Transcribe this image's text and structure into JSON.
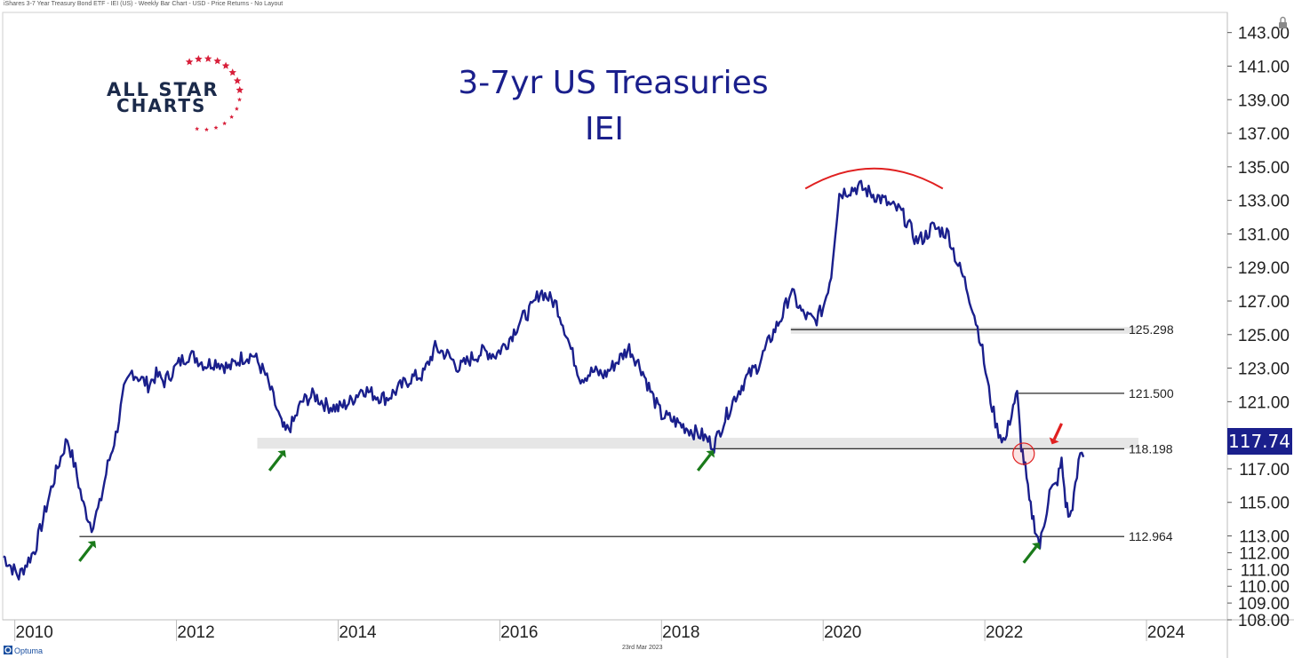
{
  "header_caption": "iShares 3-7 Year Treasury Bond ETF - IEI (US) - Weekly Bar Chart - USD - Price Returns - No Layout",
  "footer": {
    "brand": "Optuma",
    "date": "23rd Mar 2023"
  },
  "logo": {
    "line1": "ALL STAR",
    "line2": "CHARTS"
  },
  "colors": {
    "series": "#1a1f8c",
    "title": "#1a1f8c",
    "arc": "#e02020",
    "arrow_up": "#1a7a1a",
    "arrow_down": "#e02020",
    "price_box": "#1a1f8c",
    "band": "#e6e6e6",
    "star": "#d81f3a"
  },
  "chart_data": {
    "type": "line",
    "title": "3-7yr US Treasuries",
    "subtitle": "IEI",
    "xlim": [
      2009.85,
      2025.0
    ],
    "ylim": [
      108.0,
      144.2
    ],
    "y_ticks": [
      {
        "v": 143,
        "label": "143.00"
      },
      {
        "v": 141,
        "label": "141.00"
      },
      {
        "v": 139,
        "label": "139.00"
      },
      {
        "v": 137,
        "label": "137.00"
      },
      {
        "v": 135,
        "label": "135.00"
      },
      {
        "v": 133,
        "label": "133.00"
      },
      {
        "v": 131,
        "label": "131.00"
      },
      {
        "v": 129,
        "label": "129.00"
      },
      {
        "v": 127,
        "label": "127.00"
      },
      {
        "v": 125,
        "label": "125.00"
      },
      {
        "v": 123,
        "label": "123.00"
      },
      {
        "v": 121,
        "label": "121.00"
      },
      {
        "v": 119,
        "label": "119.00"
      },
      {
        "v": 117,
        "label": "117.00"
      },
      {
        "v": 115,
        "label": "115.00"
      },
      {
        "v": 113,
        "label": "113.00"
      },
      {
        "v": 112,
        "label": "112.00"
      },
      {
        "v": 111,
        "label": "111.00"
      },
      {
        "v": 110,
        "label": "110.00"
      },
      {
        "v": 109,
        "label": "109.00"
      },
      {
        "v": 108,
        "label": "108.00"
      }
    ],
    "x_ticks": [
      {
        "v": 2010,
        "label": "2010"
      },
      {
        "v": 2012,
        "label": "2012"
      },
      {
        "v": 2014,
        "label": "2014"
      },
      {
        "v": 2016,
        "label": "2016"
      },
      {
        "v": 2018,
        "label": "2018"
      },
      {
        "v": 2020,
        "label": "2020"
      },
      {
        "v": 2022,
        "label": "2022"
      },
      {
        "v": 2024,
        "label": "2024"
      }
    ],
    "series": [
      {
        "x": [
          2009.86,
          2009.95,
          2010.05,
          2010.15,
          2010.25,
          2010.35,
          2010.45,
          2010.55,
          2010.65,
          2010.75,
          2010.85,
          2010.95,
          2011.05,
          2011.15,
          2011.25,
          2011.35,
          2011.45,
          2011.55,
          2011.65,
          2011.75,
          2011.85,
          2011.95,
          2012.05,
          2012.15,
          2012.25,
          2012.35,
          2012.5,
          2012.65,
          2012.8,
          2012.95,
          2013.1,
          2013.2,
          2013.3,
          2013.35,
          2013.45,
          2013.55,
          2013.7,
          2013.85,
          2014.0,
          2014.15,
          2014.3,
          2014.45,
          2014.6,
          2014.75,
          2014.9,
          2015.05,
          2015.2,
          2015.35,
          2015.5,
          2015.65,
          2015.8,
          2015.95,
          2016.1,
          2016.25,
          2016.4,
          2016.5,
          2016.6,
          2016.7,
          2016.8,
          2016.9,
          2017.0,
          2017.15,
          2017.3,
          2017.45,
          2017.6,
          2017.75,
          2017.9,
          2018.0,
          2018.1,
          2018.25,
          2018.4,
          2018.5,
          2018.65,
          2018.75,
          2018.9,
          2019.05,
          2019.2,
          2019.35,
          2019.5,
          2019.6,
          2019.75,
          2019.9,
          2020.0,
          2020.1,
          2020.15,
          2020.2,
          2020.3,
          2020.45,
          2020.6,
          2020.75,
          2020.85,
          2020.95,
          2021.05,
          2021.15,
          2021.25,
          2021.35,
          2021.45,
          2021.55,
          2021.65,
          2021.75,
          2021.85,
          2021.95,
          2022.05,
          2022.15,
          2022.25,
          2022.35,
          2022.4,
          2022.45,
          2022.5,
          2022.55,
          2022.62,
          2022.68,
          2022.75,
          2022.8,
          2022.88,
          2022.95,
          2023.0,
          2023.05,
          2023.12,
          2023.18,
          2023.22
        ],
        "y": [
          111.8,
          111.2,
          110.6,
          111.4,
          112.2,
          114.0,
          115.8,
          117.4,
          118.8,
          117.0,
          114.8,
          113.6,
          114.8,
          117.2,
          119.0,
          121.6,
          122.8,
          122.4,
          122.0,
          122.6,
          122.2,
          122.8,
          123.4,
          123.8,
          123.6,
          123.2,
          123.4,
          123.0,
          123.6,
          123.8,
          122.6,
          121.2,
          119.6,
          119.2,
          119.8,
          121.0,
          121.4,
          120.8,
          120.6,
          121.0,
          121.8,
          121.4,
          121.2,
          121.8,
          122.4,
          122.6,
          124.2,
          123.8,
          123.0,
          123.6,
          124.0,
          123.8,
          124.6,
          125.8,
          126.6,
          127.6,
          127.2,
          126.8,
          125.4,
          123.8,
          122.4,
          122.8,
          122.6,
          123.4,
          124.2,
          123.0,
          121.2,
          120.2,
          120.0,
          119.6,
          119.2,
          119.0,
          118.4,
          119.6,
          121.2,
          122.4,
          123.2,
          124.8,
          126.2,
          127.6,
          126.2,
          125.8,
          126.6,
          128.6,
          131.2,
          133.4,
          133.6,
          133.8,
          133.4,
          133.0,
          132.6,
          132.4,
          131.6,
          130.6,
          130.8,
          131.4,
          131.2,
          131.0,
          129.4,
          128.2,
          126.6,
          124.6,
          121.6,
          119.4,
          118.6,
          120.8,
          121.4,
          118.4,
          117.0,
          115.0,
          113.6,
          112.4,
          114.2,
          115.6,
          116.0,
          117.4,
          115.0,
          114.0,
          115.8,
          118.0,
          117.7
        ]
      }
    ],
    "levels": [
      {
        "value": 125.298,
        "label": "125.298",
        "x_start": 2019.6
      },
      {
        "value": 121.5,
        "label": "121.500",
        "x_start": 2022.4
      },
      {
        "value": 118.198,
        "label": "118.198",
        "x_start": 2018.6
      },
      {
        "value": 112.964,
        "label": "112.964",
        "x_start": 2010.8
      }
    ],
    "support_band": {
      "x_start": 2013.0,
      "x_end": 2023.9,
      "y_low": 118.2,
      "y_high": 118.85
    },
    "support_band_2": {
      "x_start": 2019.6,
      "x_end": 2023.9,
      "y_low": 125.05,
      "y_high": 125.45
    },
    "up_arrows": [
      {
        "x": 2010.8,
        "y": 111.5
      },
      {
        "x": 2013.15,
        "y": 116.9
      },
      {
        "x": 2018.45,
        "y": 116.9
      },
      {
        "x": 2022.48,
        "y": 111.4
      }
    ],
    "down_arrow": {
      "x": 2022.95,
      "y": 119.7
    },
    "circle_marker": {
      "x": 2022.48,
      "y": 117.9
    },
    "top_arc": {
      "x_start": 2019.78,
      "x_end": 2021.48,
      "y_base": 133.7,
      "y_peak": 134.9
    },
    "last_price": {
      "value": 117.74,
      "label": "117.74"
    }
  }
}
